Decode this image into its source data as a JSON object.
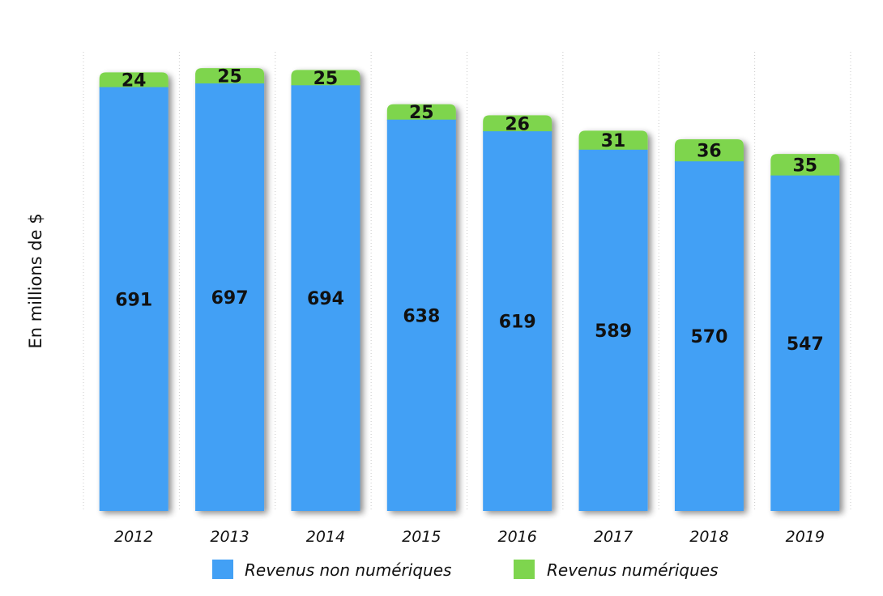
{
  "chart_data": {
    "type": "bar",
    "stacked": true,
    "categories": [
      "2012",
      "2013",
      "2014",
      "2015",
      "2016",
      "2017",
      "2018",
      "2019"
    ],
    "series": [
      {
        "name": "Revenus non numériques",
        "color": "#42A0F5",
        "values": [
          691,
          697,
          694,
          638,
          619,
          589,
          570,
          547
        ]
      },
      {
        "name": "Revenus numériques",
        "color": "#7ED54E",
        "values": [
          24,
          25,
          25,
          25,
          26,
          31,
          36,
          35
        ]
      }
    ],
    "ylabel": "En millions de $",
    "ylim": [
      0,
      730
    ],
    "grid": false,
    "vertical_separators": true,
    "legend_position": "bottom"
  }
}
